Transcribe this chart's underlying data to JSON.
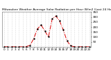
{
  "title": "Milwaukee Weather Average Solar Radiation per Hour W/m2 (Last 24 Hours)",
  "x_labels": [
    "0",
    "1",
    "2",
    "3",
    "4",
    "5",
    "6",
    "7",
    "8",
    "9",
    "10",
    "11",
    "12",
    "13",
    "14",
    "15",
    "16",
    "17",
    "18",
    "19",
    "20",
    "21",
    "22",
    "23"
  ],
  "y_values": [
    0,
    0,
    0,
    0,
    0,
    0,
    2,
    15,
    80,
    180,
    220,
    160,
    100,
    280,
    310,
    260,
    170,
    60,
    10,
    0,
    0,
    0,
    0,
    0
  ],
  "ylim": [
    0,
    350
  ],
  "y_ticks": [
    50,
    100,
    150,
    200,
    250,
    300,
    350
  ],
  "line_color": "#dd0000",
  "line_style": "-.",
  "line_width": 0.7,
  "marker": ".",
  "marker_color": "#000000",
  "marker_size": 1.5,
  "grid_color": "#bbbbbb",
  "grid_style": ":",
  "bg_color": "#ffffff",
  "title_fontsize": 3.2,
  "tick_fontsize": 3.0,
  "fig_width": 1.6,
  "fig_height": 0.87,
  "dpi": 100
}
